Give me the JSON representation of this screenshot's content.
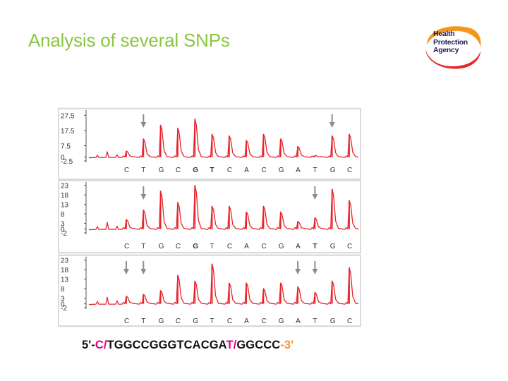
{
  "slide": {
    "title": "Analysis of several SNPs"
  },
  "logo": {
    "lines": [
      "Health",
      "Protection",
      "Agency"
    ],
    "colors": {
      "orange": "#f7941d",
      "red": "#e8232a",
      "navy": "#1f1f5c"
    }
  },
  "sequence": {
    "prefix": "5'-",
    "snp1": "C/",
    "middle": "TGGCCGGGTCACGA",
    "snp2": "T/",
    "tail": "GGCCC",
    "suffix": "-3'"
  },
  "colors": {
    "title": "#8cc63f",
    "trace": "#e8232a",
    "arrow": "#8c8c8c",
    "snp_text": "#e6007e",
    "end_text": "#f7941d"
  },
  "chart_data": [
    {
      "type": "line",
      "panel": 1,
      "y_ticks": [
        "27.5",
        "17.5",
        "7.5",
        "0",
        "-2.5"
      ],
      "ylim": [
        -2.5,
        30
      ],
      "x_labels": [
        "C",
        "T",
        "G",
        "C",
        "G",
        "T",
        "C",
        "A",
        "C",
        "G",
        "A",
        "T",
        "G",
        "C"
      ],
      "bold_labels": [
        4,
        5
      ],
      "peaks": [
        4,
        12,
        21,
        19,
        25,
        15,
        14,
        11,
        15,
        12,
        7,
        1,
        14,
        15
      ],
      "arrows": [
        1,
        12
      ],
      "grid": false
    },
    {
      "type": "line",
      "panel": 2,
      "y_ticks": [
        "23",
        "18",
        "13",
        "8",
        "3",
        "0",
        "-2"
      ],
      "ylim": [
        -2,
        24
      ],
      "x_labels": [
        "C",
        "T",
        "G",
        "C",
        "G",
        "T",
        "C",
        "A",
        "C",
        "G",
        "A",
        "T",
        "G",
        "C"
      ],
      "bold_labels": [
        4,
        11
      ],
      "peaks": [
        5,
        10,
        20,
        14,
        23,
        12,
        12,
        9,
        12,
        9,
        4,
        6,
        21,
        15
      ],
      "arrows": [
        1,
        11
      ],
      "grid": false
    },
    {
      "type": "line",
      "panel": 3,
      "y_ticks": [
        "23",
        "18",
        "13",
        "8",
        "3",
        "0",
        "-2"
      ],
      "ylim": [
        -2,
        24
      ],
      "x_labels": [
        "C",
        "T",
        "G",
        "C",
        "G",
        "T",
        "C",
        "A",
        "C",
        "G",
        "A",
        "T",
        "G",
        "C"
      ],
      "bold_labels": [],
      "peaks": [
        4,
        5,
        7,
        15,
        12,
        21,
        11,
        11,
        8,
        11,
        9,
        6,
        12,
        19
      ],
      "arrows": [
        0,
        1,
        10,
        11
      ],
      "grid": false
    }
  ]
}
